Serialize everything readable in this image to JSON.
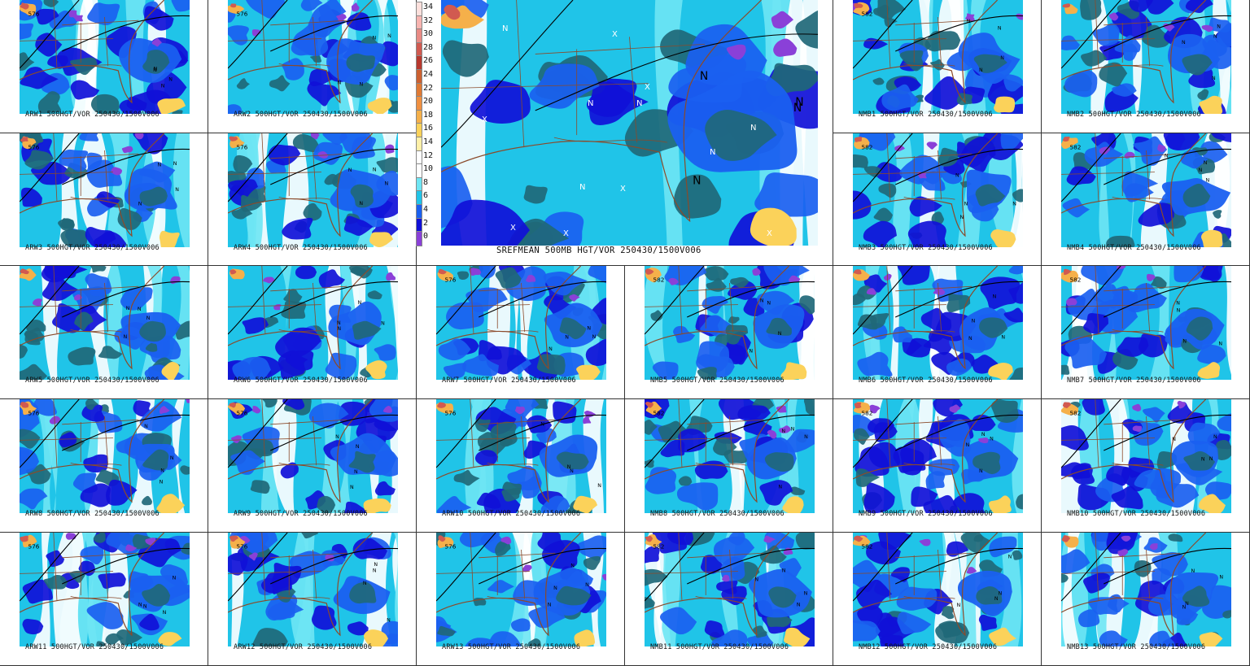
{
  "main_panel": {
    "caption": "SREFMEAN 500MB HGT/VOR 250430/1500V006",
    "colorbar": {
      "labels": [
        "34",
        "32",
        "30",
        "28",
        "26",
        "24",
        "22",
        "20",
        "18",
        "16",
        "14",
        "12",
        "10",
        "8",
        "6",
        "4",
        "2",
        "0"
      ],
      "colors": [
        "#fde0dc",
        "#f8b4b0",
        "#e98a84",
        "#d15a50",
        "#b8382e",
        "#cc6030",
        "#e07a34",
        "#f09040",
        "#f5b04a",
        "#fbd25a",
        "#fff0a8",
        "#ffffff",
        "#ffffff",
        "#6ee6f4",
        "#20c4e8",
        "#1a60f0",
        "#1010d8",
        "#8a40d8"
      ]
    },
    "markers": [
      "X",
      "X",
      "X",
      "X",
      "N",
      "N",
      "N",
      "N",
      "X",
      "X",
      "N",
      "X",
      "N"
    ]
  },
  "members": [
    {
      "id": "ARW1",
      "caption": "ARW1 500HGT/VOR 250430/1500V006",
      "contour_label": "576"
    },
    {
      "id": "ARW2",
      "caption": "ARW2 500HGT/VOR 250430/1500V006",
      "contour_label": "576"
    },
    {
      "id": "NMB1",
      "caption": "NMB1 500HGT/VOR 250430/1500V006",
      "contour_label": "582"
    },
    {
      "id": "NMB2",
      "caption": "NMB2 500HGT/VOR 250430/1500V006",
      "contour_label": ""
    },
    {
      "id": "ARW3",
      "caption": "ARW3 500HGT/VOR 250430/1500V006",
      "contour_label": "576"
    },
    {
      "id": "ARW4",
      "caption": "ARW4 500HGT/VOR 250430/1500V006",
      "contour_label": "576"
    },
    {
      "id": "NMB3",
      "caption": "NMB3 500HGT/VOR 250430/1500V006",
      "contour_label": "582"
    },
    {
      "id": "NMB4",
      "caption": "NMB4 500HGT/VOR 250430/1500V006",
      "contour_label": "582"
    },
    {
      "id": "ARW5",
      "caption": "ARW5 500HGT/VOR 250430/1500V006",
      "contour_label": ""
    },
    {
      "id": "ARW6",
      "caption": "ARW6 500HGT/VOR 250430/1500V006",
      "contour_label": ""
    },
    {
      "id": "ARW7",
      "caption": "ARW7 500HGT/VOR 250430/1500V006",
      "contour_label": "576"
    },
    {
      "id": "NMB5",
      "caption": "NMB5 500HGT/VOR 250430/1500V006",
      "contour_label": "582"
    },
    {
      "id": "NMB6",
      "caption": "NMB6 500HGT/VOR 250430/1500V006",
      "contour_label": ""
    },
    {
      "id": "NMB7",
      "caption": "NMB7 500HGT/VOR 250430/1500V006",
      "contour_label": "582"
    },
    {
      "id": "ARW8",
      "caption": "ARW8 500HGT/VOR 250430/1500V006",
      "contour_label": "576"
    },
    {
      "id": "ARW9",
      "caption": "ARW9 500HGT/VOR 250430/1500V006",
      "contour_label": "576"
    },
    {
      "id": "ARW10",
      "caption": "ARW10 500HGT/VOR 250430/1500V006",
      "contour_label": "576"
    },
    {
      "id": "NMB8",
      "caption": "NMB8 500HGT/VOR 250430/1500V006",
      "contour_label": "582"
    },
    {
      "id": "NMB9",
      "caption": "NMB9 500HGT/VOR 250430/1500V006",
      "contour_label": "582"
    },
    {
      "id": "NMB10",
      "caption": "NMB10 500HGT/VOR 250430/1500V006",
      "contour_label": "582"
    },
    {
      "id": "ARW11",
      "caption": "ARW11 500HGT/VOR 250430/1500V006",
      "contour_label": "576"
    },
    {
      "id": "ARW12",
      "caption": "ARW12 500HGT/VOR 250430/1500V006",
      "contour_label": "576"
    },
    {
      "id": "ARW13",
      "caption": "ARW13 500HGT/VOR 250430/1500V006",
      "contour_label": "576"
    },
    {
      "id": "NMB11",
      "caption": "NMB11 500HGT/VOR 250430/1500V006",
      "contour_label": "582"
    },
    {
      "id": "NMB12",
      "caption": "NMB12 500HGT/VOR 250430/1500V006",
      "contour_label": "582"
    },
    {
      "id": "NMB13",
      "caption": "NMB13 500HGT/VOR 250430/1500V006",
      "contour_label": ""
    }
  ],
  "palette": {
    "light_cyan": "#6ee6f4",
    "cyan": "#20c4e8",
    "blue": "#1a60f0",
    "dark_blue": "#1010d8",
    "teal": "#206878",
    "purple": "#8a40d8",
    "orange": "#f5b04a",
    "red": "#d15a50",
    "state_lines": "#8b4a2a",
    "height_contour": "#000000"
  }
}
